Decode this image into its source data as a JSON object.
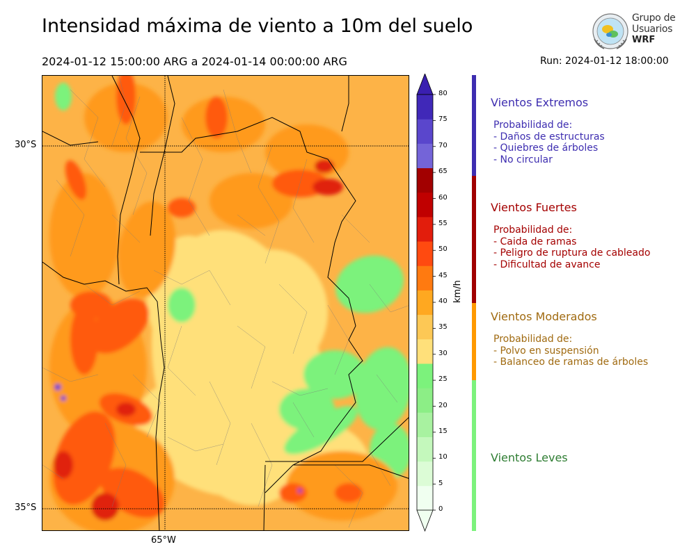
{
  "header": {
    "title": "Intensidad máxima de viento a 10m del suelo",
    "period": "2024-01-12 15:00:00 ARG  a  2024-01-14 00:00:00 ARG",
    "run": "Run: 2024-01-12 18:00:00"
  },
  "logo": {
    "line1": "Grupo de",
    "line2": "Usuarios",
    "line3": "WRF"
  },
  "map": {
    "lat_labels": [
      "30°S",
      "35°S"
    ],
    "lon_labels": [
      "65°W"
    ],
    "colors": {
      "leve": "#7cf27c",
      "moderado_claro": "#ffe07a",
      "moderado": "#fdb347",
      "moderado_fuerte": "#ff9a1e",
      "fuerte": "#ff5a10",
      "fuerte_rojo": "#e02010",
      "extremo": "#6a3fd0",
      "borders": "#000000",
      "districts": "#7a7a7a"
    }
  },
  "colorbar": {
    "unit": "km/h",
    "ticks": [
      "0",
      "5",
      "10",
      "15",
      "20",
      "25",
      "30",
      "35",
      "40",
      "45",
      "50",
      "55",
      "60",
      "65",
      "70",
      "75",
      "80"
    ],
    "colors": [
      "#f0fff0",
      "#dcfcd6",
      "#c4f8bc",
      "#a8f2a0",
      "#8cee86",
      "#7cf27c",
      "#ffe07a",
      "#fdc855",
      "#ffa820",
      "#ff7a10",
      "#ff4a10",
      "#e21d0c",
      "#c00000",
      "#a20000",
      "#7464d8",
      "#5a46cc",
      "#4028b8"
    ],
    "max_color": "#3a1fb0",
    "min_color": "#f0fff0"
  },
  "categories": [
    {
      "title": "Vientos Extremos",
      "color": "#3d2db0",
      "lines": [
        "Probabilidad de:",
        "- Daños de estructuras",
        "- Quiebres de árboles",
        "- No circular"
      ]
    },
    {
      "title": "Vientos Fuertes",
      "color": "#a40000",
      "lines": [
        "Probabilidad de:",
        "- Caida de ramas",
        "- Peligro de ruptura de cableado",
        "- Dificultad de avance"
      ]
    },
    {
      "title": "Vientos Moderados",
      "color": "#a06a10",
      "lines": [
        "Probabilidad de:",
        "- Polvo en suspensión",
        "- Balanceo de ramas de árboles"
      ]
    },
    {
      "title": "Vientos Leves",
      "color": "#2e7d32",
      "lines": []
    }
  ],
  "category_bar_colors": [
    "#3d2db0",
    "#a00000",
    "#ff9900",
    "#7cf27c"
  ]
}
